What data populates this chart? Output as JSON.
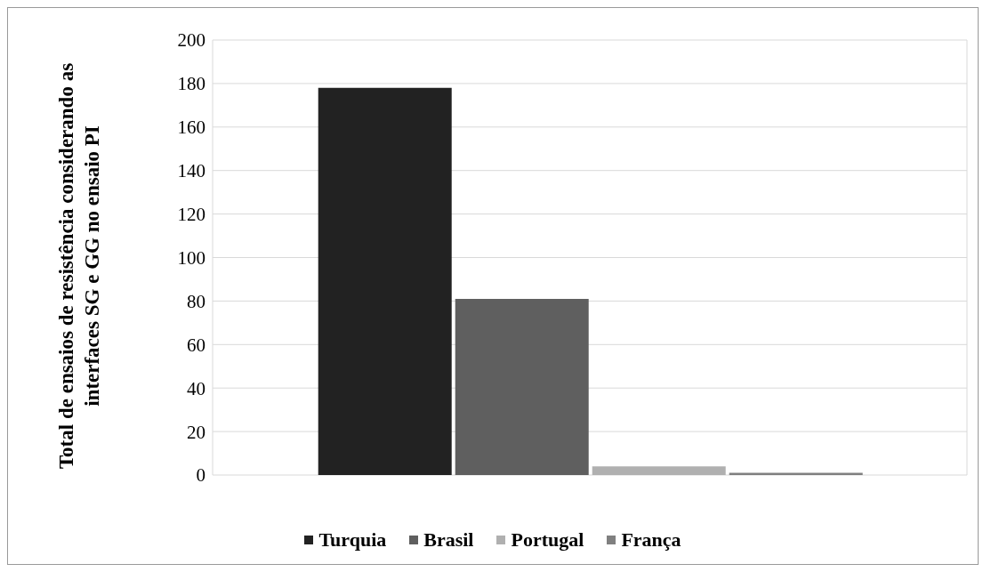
{
  "chart_data": {
    "type": "bar",
    "ylabel": "Total de ensaios de resistência considerando as interfaces SG e GG no ensaio PI",
    "categories": [
      null
    ],
    "series": [
      {
        "name": "Turquia",
        "color": "#222222",
        "values": [
          178
        ]
      },
      {
        "name": "Brasil",
        "color": "#5f5f5f",
        "values": [
          81
        ]
      },
      {
        "name": "Portugal",
        "color": "#b0b0b0",
        "values": [
          4
        ]
      },
      {
        "name": "França",
        "color": "#808080",
        "values": [
          1
        ]
      }
    ],
    "ylim": [
      0,
      200
    ],
    "yticks": [
      0,
      20,
      40,
      60,
      80,
      100,
      120,
      140,
      160,
      180,
      200
    ],
    "grid": "y",
    "legend": "bottom"
  }
}
